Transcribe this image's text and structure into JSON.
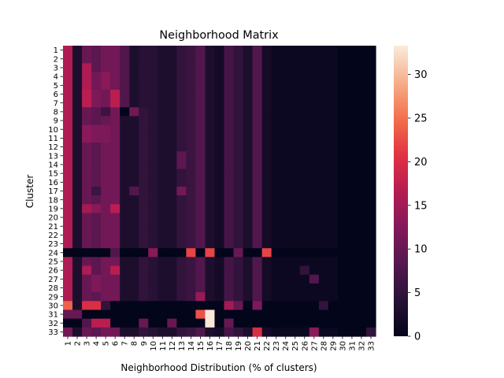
{
  "chart_data": {
    "type": "heatmap",
    "title": "Neighborhood Matrix",
    "xlabel": "Neighborhood Distribution (% of clusters)",
    "ylabel": "Cluster",
    "x_categories": [
      "1",
      "2",
      "3",
      "4",
      "5",
      "6",
      "7",
      "8",
      "9",
      "10",
      "11",
      "12",
      "13",
      "14",
      "15",
      "16",
      "17",
      "18",
      "19",
      "20",
      "21",
      "22",
      "23",
      "24",
      "25",
      "26",
      "27",
      "28",
      "29",
      "30",
      "31",
      "32",
      "33"
    ],
    "y_categories": [
      "1",
      "2",
      "3",
      "4",
      "5",
      "6",
      "7",
      "8",
      "9",
      "10",
      "11",
      "12",
      "13",
      "14",
      "15",
      "16",
      "17",
      "18",
      "19",
      "20",
      "21",
      "22",
      "23",
      "24",
      "25",
      "26",
      "27",
      "28",
      "29",
      "30",
      "31",
      "32",
      "33"
    ],
    "colorbar": {
      "min": 0,
      "max": 33.3,
      "ticks": [
        0,
        5,
        10,
        15,
        20,
        25,
        30
      ],
      "colormap": "rocket"
    },
    "values": [
      [
        16,
        3,
        10,
        9,
        11,
        11,
        8,
        3,
        4,
        4,
        3,
        3,
        5,
        6,
        8,
        3,
        2,
        7,
        5,
        3,
        8,
        2,
        1,
        1,
        1,
        1,
        1,
        1,
        1,
        0,
        0,
        0,
        0
      ],
      [
        16,
        3,
        10,
        9,
        11,
        11,
        8,
        3,
        4,
        4,
        3,
        3,
        5,
        6,
        8,
        3,
        2,
        7,
        5,
        3,
        8,
        2,
        1,
        1,
        1,
        1,
        1,
        1,
        1,
        0,
        0,
        0,
        0
      ],
      [
        16,
        3,
        16,
        9,
        11,
        11,
        8,
        3,
        4,
        4,
        3,
        3,
        5,
        6,
        8,
        3,
        2,
        7,
        5,
        3,
        8,
        2,
        1,
        1,
        1,
        1,
        1,
        1,
        1,
        0,
        0,
        0,
        0
      ],
      [
        16,
        3,
        16,
        11,
        13,
        11,
        8,
        3,
        4,
        4,
        3,
        3,
        5,
        6,
        8,
        3,
        2,
        7,
        5,
        3,
        8,
        2,
        1,
        1,
        1,
        1,
        1,
        1,
        1,
        0,
        0,
        0,
        0
      ],
      [
        16,
        3,
        16,
        11,
        13,
        11,
        8,
        3,
        4,
        4,
        3,
        3,
        5,
        6,
        8,
        3,
        2,
        7,
        5,
        3,
        8,
        2,
        1,
        1,
        1,
        1,
        1,
        1,
        1,
        0,
        0,
        0,
        0
      ],
      [
        16,
        3,
        17,
        12,
        11,
        17,
        8,
        3,
        4,
        4,
        3,
        3,
        5,
        6,
        8,
        3,
        2,
        7,
        5,
        3,
        8,
        2,
        1,
        1,
        1,
        1,
        1,
        1,
        1,
        0,
        0,
        0,
        0
      ],
      [
        16,
        3,
        17,
        12,
        11,
        17,
        8,
        3,
        4,
        4,
        3,
        3,
        5,
        6,
        8,
        3,
        2,
        7,
        5,
        3,
        8,
        2,
        1,
        1,
        1,
        1,
        1,
        1,
        1,
        0,
        0,
        0,
        0
      ],
      [
        16,
        3,
        10,
        9,
        6,
        11,
        0,
        11,
        5,
        4,
        3,
        3,
        5,
        6,
        8,
        3,
        2,
        7,
        5,
        3,
        8,
        2,
        1,
        1,
        1,
        1,
        1,
        1,
        1,
        0,
        0,
        0,
        0
      ],
      [
        16,
        3,
        10,
        9,
        10,
        11,
        3,
        3,
        5,
        4,
        3,
        3,
        5,
        6,
        8,
        3,
        2,
        7,
        5,
        3,
        8,
        2,
        1,
        1,
        1,
        1,
        1,
        1,
        1,
        0,
        0,
        0,
        0
      ],
      [
        16,
        3,
        13,
        12,
        12,
        11,
        3,
        3,
        5,
        4,
        3,
        3,
        5,
        6,
        8,
        3,
        2,
        7,
        5,
        3,
        8,
        2,
        1,
        1,
        1,
        1,
        1,
        1,
        1,
        0,
        0,
        0,
        0
      ],
      [
        16,
        3,
        13,
        12,
        12,
        11,
        3,
        3,
        5,
        4,
        3,
        3,
        5,
        6,
        8,
        3,
        2,
        7,
        5,
        3,
        8,
        2,
        1,
        1,
        1,
        1,
        1,
        1,
        1,
        0,
        0,
        0,
        0
      ],
      [
        16,
        3,
        10,
        9,
        11,
        11,
        3,
        3,
        5,
        4,
        3,
        3,
        5,
        6,
        8,
        3,
        2,
        7,
        5,
        3,
        8,
        2,
        1,
        1,
        1,
        1,
        1,
        1,
        1,
        0,
        0,
        0,
        0
      ],
      [
        16,
        3,
        10,
        9,
        11,
        11,
        3,
        3,
        5,
        4,
        3,
        3,
        9,
        6,
        8,
        3,
        2,
        7,
        5,
        3,
        8,
        2,
        1,
        1,
        1,
        1,
        1,
        1,
        1,
        0,
        0,
        0,
        0
      ],
      [
        16,
        3,
        10,
        9,
        11,
        11,
        3,
        3,
        5,
        4,
        3,
        3,
        9,
        6,
        8,
        3,
        2,
        7,
        5,
        3,
        8,
        2,
        1,
        1,
        1,
        1,
        1,
        1,
        1,
        0,
        0,
        0,
        0
      ],
      [
        16,
        3,
        10,
        9,
        11,
        11,
        3,
        3,
        5,
        4,
        3,
        3,
        5,
        6,
        8,
        3,
        2,
        7,
        5,
        3,
        8,
        2,
        1,
        1,
        1,
        1,
        1,
        1,
        1,
        0,
        0,
        0,
        0
      ],
      [
        16,
        3,
        10,
        9,
        11,
        11,
        3,
        3,
        5,
        4,
        3,
        3,
        5,
        6,
        8,
        3,
        2,
        7,
        5,
        3,
        8,
        2,
        1,
        1,
        1,
        1,
        1,
        1,
        1,
        0,
        0,
        0,
        0
      ],
      [
        16,
        3,
        10,
        6,
        11,
        11,
        3,
        8,
        5,
        4,
        3,
        3,
        11,
        6,
        8,
        3,
        2,
        7,
        5,
        3,
        8,
        2,
        1,
        1,
        1,
        1,
        1,
        1,
        1,
        0,
        0,
        0,
        0
      ],
      [
        16,
        3,
        10,
        9,
        11,
        11,
        3,
        3,
        5,
        4,
        3,
        3,
        5,
        6,
        8,
        3,
        2,
        7,
        5,
        3,
        8,
        2,
        1,
        1,
        1,
        1,
        1,
        1,
        1,
        0,
        0,
        0,
        0
      ],
      [
        16,
        3,
        15,
        13,
        11,
        17,
        3,
        3,
        5,
        4,
        3,
        3,
        5,
        6,
        8,
        3,
        2,
        7,
        5,
        3,
        8,
        2,
        1,
        1,
        1,
        1,
        1,
        1,
        1,
        0,
        0,
        0,
        0
      ],
      [
        16,
        3,
        10,
        9,
        11,
        11,
        3,
        3,
        5,
        4,
        3,
        3,
        5,
        6,
        8,
        3,
        2,
        7,
        5,
        3,
        8,
        2,
        1,
        1,
        1,
        1,
        1,
        1,
        1,
        0,
        0,
        0,
        0
      ],
      [
        16,
        3,
        10,
        9,
        11,
        11,
        3,
        3,
        5,
        4,
        3,
        3,
        5,
        6,
        8,
        3,
        2,
        7,
        5,
        3,
        8,
        2,
        1,
        1,
        1,
        1,
        1,
        1,
        1,
        0,
        0,
        0,
        0
      ],
      [
        16,
        3,
        10,
        9,
        11,
        11,
        3,
        3,
        5,
        4,
        3,
        3,
        5,
        6,
        8,
        3,
        2,
        7,
        5,
        3,
        8,
        2,
        1,
        1,
        1,
        1,
        1,
        1,
        1,
        0,
        0,
        0,
        0
      ],
      [
        16,
        3,
        10,
        9,
        11,
        11,
        3,
        3,
        5,
        4,
        3,
        3,
        5,
        6,
        8,
        3,
        2,
        7,
        5,
        3,
        8,
        2,
        1,
        1,
        1,
        1,
        1,
        1,
        1,
        0,
        0,
        0,
        0
      ],
      [
        0,
        0,
        0,
        0,
        0,
        8,
        0,
        0,
        0,
        13,
        0,
        0,
        0,
        22,
        0,
        22,
        0,
        0,
        10,
        0,
        0,
        22,
        0,
        0,
        0,
        0,
        0,
        0,
        0,
        0,
        0,
        0,
        0
      ],
      [
        16,
        3,
        10,
        9,
        11,
        11,
        3,
        3,
        5,
        4,
        3,
        3,
        5,
        6,
        8,
        3,
        2,
        7,
        5,
        3,
        8,
        2,
        1,
        1,
        1,
        1,
        1,
        1,
        1,
        0,
        0,
        0,
        0
      ],
      [
        16,
        3,
        16,
        9,
        11,
        17,
        3,
        3,
        5,
        4,
        3,
        3,
        5,
        6,
        8,
        3,
        2,
        7,
        5,
        3,
        8,
        2,
        1,
        1,
        1,
        5,
        1,
        1,
        1,
        0,
        0,
        0,
        0
      ],
      [
        16,
        3,
        10,
        12,
        11,
        11,
        3,
        3,
        5,
        4,
        3,
        3,
        5,
        6,
        8,
        3,
        2,
        7,
        5,
        3,
        8,
        2,
        1,
        1,
        1,
        1,
        8,
        1,
        1,
        0,
        0,
        0,
        0
      ],
      [
        16,
        3,
        10,
        12,
        11,
        11,
        3,
        3,
        5,
        4,
        3,
        3,
        5,
        6,
        8,
        3,
        2,
        7,
        5,
        3,
        8,
        2,
        1,
        1,
        1,
        1,
        1,
        1,
        1,
        0,
        0,
        0,
        0
      ],
      [
        16,
        3,
        10,
        9,
        11,
        11,
        3,
        3,
        5,
        4,
        3,
        3,
        5,
        6,
        14,
        3,
        2,
        7,
        5,
        3,
        8,
        2,
        1,
        1,
        1,
        1,
        1,
        1,
        1,
        0,
        0,
        0,
        0
      ],
      [
        24,
        3,
        20,
        20,
        5,
        0,
        0,
        0,
        0,
        0,
        0,
        0,
        0,
        0,
        0,
        0,
        0,
        15,
        10,
        0,
        12,
        0,
        0,
        0,
        0,
        0,
        0,
        5,
        0,
        0,
        0,
        0,
        0
      ],
      [
        10,
        10,
        0,
        0,
        0,
        0,
        0,
        0,
        0,
        0,
        0,
        0,
        0,
        0,
        23,
        33,
        0,
        0,
        0,
        0,
        0,
        0,
        0,
        0,
        0,
        0,
        0,
        0,
        0,
        0,
        0,
        0,
        0
      ],
      [
        0,
        0,
        8,
        17,
        17,
        0,
        0,
        0,
        10,
        0,
        0,
        10,
        0,
        0,
        0,
        33,
        0,
        10,
        0,
        0,
        0,
        0,
        0,
        0,
        0,
        0,
        0,
        0,
        0,
        0,
        0,
        0,
        0
      ],
      [
        11,
        3,
        10,
        9,
        11,
        11,
        3,
        3,
        5,
        4,
        3,
        3,
        5,
        6,
        8,
        3,
        2,
        7,
        5,
        3,
        20,
        2,
        1,
        1,
        1,
        1,
        13,
        1,
        1,
        0,
        0,
        0,
        5
      ]
    ]
  }
}
